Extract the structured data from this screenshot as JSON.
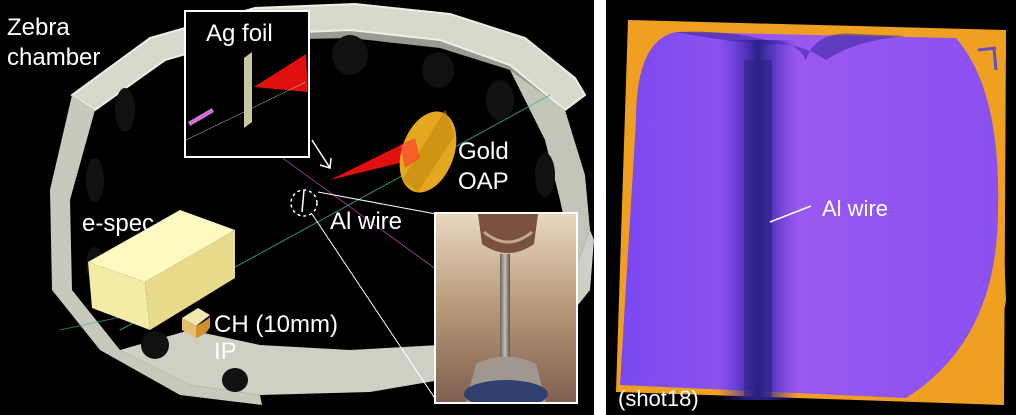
{
  "left_panel": {
    "labels": {
      "chamber": [
        "Zebra",
        "chamber"
      ],
      "ag_foil": "Ag foil",
      "gold_oap": [
        "Gold",
        "OAP"
      ],
      "al_wire": "Al wire",
      "e_spec": "e-spec",
      "ch_ip": [
        "CH (10mm)",
        "IP"
      ]
    }
  },
  "right_panel": {
    "al_wire_label": "Al wire",
    "shot_label": "(shot18)"
  },
  "colors": {
    "background": "#000000",
    "chamber_wall": "#cfcfc4",
    "e_spec_block": "#f7f0a8",
    "oap": "#e3a820",
    "laser_cone": "#e01010",
    "image_plate_purple": "#8a4bf0",
    "image_plate_orange": "#f0a020"
  }
}
